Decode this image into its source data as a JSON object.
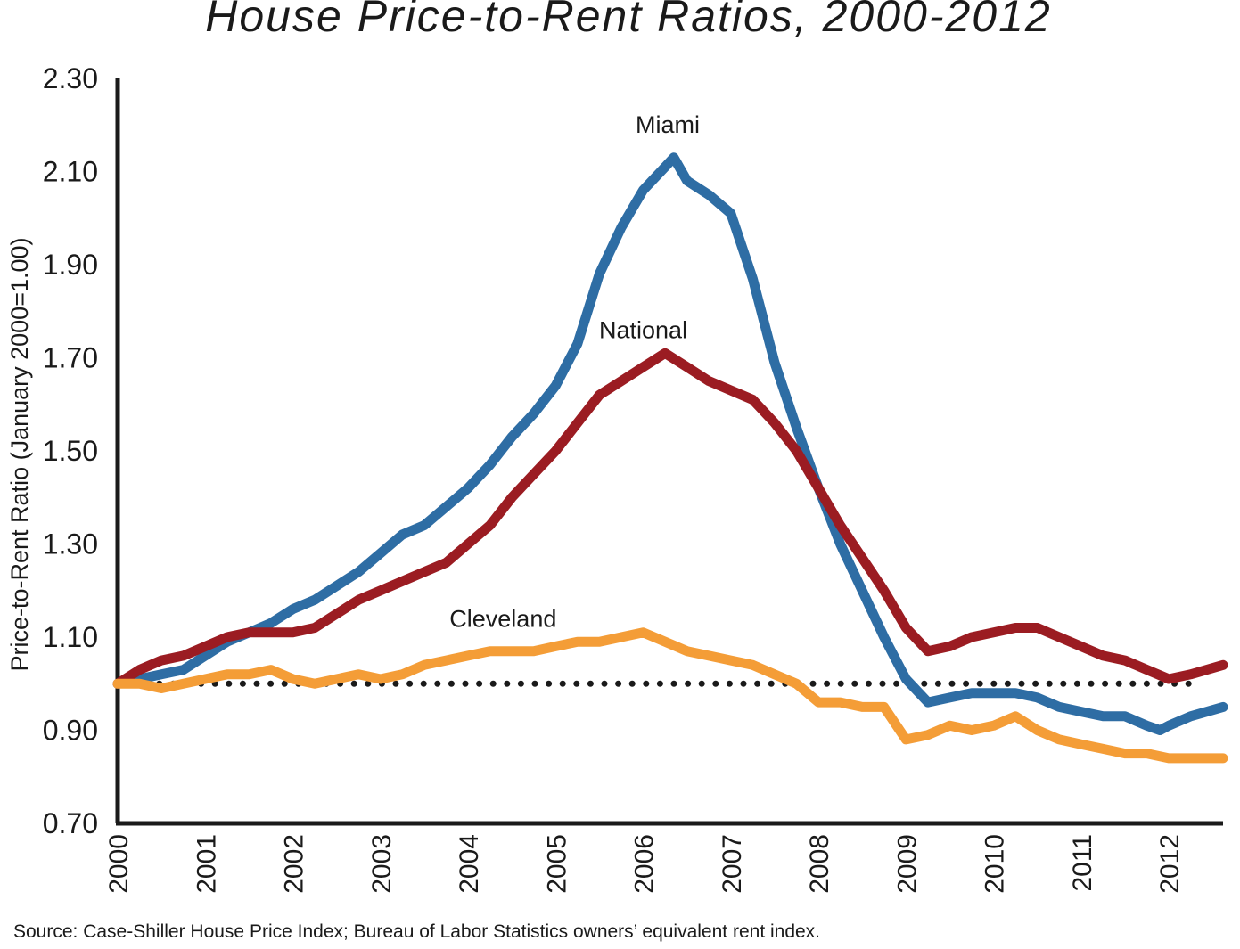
{
  "chart_data": {
    "type": "line",
    "title": "House Price-to-Rent Ratios, 2000-2012",
    "ylabel": "Price-to-Rent Ratio (January 2000=1.00)",
    "xlabel": "",
    "source": "Source: Case-Shiller House Price Index; Bureau of Labor Statistics owners’ equivalent rent index.",
    "xlim": [
      2000,
      2012.62
    ],
    "ylim": [
      0.7,
      2.3
    ],
    "x_ticks": [
      "2000",
      "2001",
      "2002",
      "2003",
      "2004",
      "2005",
      "2006",
      "2007",
      "2008",
      "2009",
      "2010",
      "2011",
      "2012"
    ],
    "y_ticks": [
      "0.70",
      "0.90",
      "1.10",
      "1.30",
      "1.50",
      "1.70",
      "1.90",
      "2.10",
      "2.30"
    ],
    "grid": false,
    "legend": "none (series labeled directly on chart)",
    "reference_line": {
      "y": 1.0,
      "style": "dotted",
      "color": "#1a1a1a"
    },
    "series": [
      {
        "name": "Miami",
        "color": "#2e6da4",
        "points": [
          [
            2000.0,
            1.0
          ],
          [
            2000.25,
            1.01
          ],
          [
            2000.5,
            1.02
          ],
          [
            2000.75,
            1.03
          ],
          [
            2001.0,
            1.06
          ],
          [
            2001.25,
            1.09
          ],
          [
            2001.5,
            1.11
          ],
          [
            2001.75,
            1.13
          ],
          [
            2002.0,
            1.16
          ],
          [
            2002.25,
            1.18
          ],
          [
            2002.5,
            1.21
          ],
          [
            2002.75,
            1.24
          ],
          [
            2003.0,
            1.28
          ],
          [
            2003.25,
            1.32
          ],
          [
            2003.5,
            1.34
          ],
          [
            2003.75,
            1.38
          ],
          [
            2004.0,
            1.42
          ],
          [
            2004.25,
            1.47
          ],
          [
            2004.5,
            1.53
          ],
          [
            2004.75,
            1.58
          ],
          [
            2005.0,
            1.64
          ],
          [
            2005.25,
            1.73
          ],
          [
            2005.5,
            1.88
          ],
          [
            2005.75,
            1.98
          ],
          [
            2006.0,
            2.06
          ],
          [
            2006.25,
            2.11
          ],
          [
            2006.35,
            2.13
          ],
          [
            2006.5,
            2.08
          ],
          [
            2006.75,
            2.05
          ],
          [
            2007.0,
            2.01
          ],
          [
            2007.25,
            1.87
          ],
          [
            2007.5,
            1.69
          ],
          [
            2007.75,
            1.55
          ],
          [
            2008.0,
            1.42
          ],
          [
            2008.25,
            1.3
          ],
          [
            2008.5,
            1.2
          ],
          [
            2008.75,
            1.1
          ],
          [
            2009.0,
            1.01
          ],
          [
            2009.25,
            0.96
          ],
          [
            2009.5,
            0.97
          ],
          [
            2009.75,
            0.98
          ],
          [
            2010.0,
            0.98
          ],
          [
            2010.25,
            0.98
          ],
          [
            2010.5,
            0.97
          ],
          [
            2010.75,
            0.95
          ],
          [
            2011.0,
            0.94
          ],
          [
            2011.25,
            0.93
          ],
          [
            2011.5,
            0.93
          ],
          [
            2011.75,
            0.91
          ],
          [
            2011.9,
            0.9
          ],
          [
            2012.0,
            0.91
          ],
          [
            2012.25,
            0.93
          ],
          [
            2012.62,
            0.95
          ]
        ]
      },
      {
        "name": "National",
        "color": "#9b1c22",
        "points": [
          [
            2000.0,
            1.0
          ],
          [
            2000.25,
            1.03
          ],
          [
            2000.5,
            1.05
          ],
          [
            2000.75,
            1.06
          ],
          [
            2001.0,
            1.08
          ],
          [
            2001.25,
            1.1
          ],
          [
            2001.5,
            1.11
          ],
          [
            2001.75,
            1.11
          ],
          [
            2002.0,
            1.11
          ],
          [
            2002.25,
            1.12
          ],
          [
            2002.5,
            1.15
          ],
          [
            2002.75,
            1.18
          ],
          [
            2003.0,
            1.2
          ],
          [
            2003.25,
            1.22
          ],
          [
            2003.5,
            1.24
          ],
          [
            2003.75,
            1.26
          ],
          [
            2004.0,
            1.3
          ],
          [
            2004.25,
            1.34
          ],
          [
            2004.5,
            1.4
          ],
          [
            2004.75,
            1.45
          ],
          [
            2005.0,
            1.5
          ],
          [
            2005.25,
            1.56
          ],
          [
            2005.5,
            1.62
          ],
          [
            2005.75,
            1.65
          ],
          [
            2006.0,
            1.68
          ],
          [
            2006.25,
            1.71
          ],
          [
            2006.5,
            1.68
          ],
          [
            2006.75,
            1.65
          ],
          [
            2007.0,
            1.63
          ],
          [
            2007.25,
            1.61
          ],
          [
            2007.5,
            1.56
          ],
          [
            2007.75,
            1.5
          ],
          [
            2008.0,
            1.42
          ],
          [
            2008.25,
            1.34
          ],
          [
            2008.5,
            1.27
          ],
          [
            2008.75,
            1.2
          ],
          [
            2009.0,
            1.12
          ],
          [
            2009.25,
            1.07
          ],
          [
            2009.5,
            1.08
          ],
          [
            2009.75,
            1.1
          ],
          [
            2010.0,
            1.11
          ],
          [
            2010.25,
            1.12
          ],
          [
            2010.5,
            1.12
          ],
          [
            2010.75,
            1.1
          ],
          [
            2011.0,
            1.08
          ],
          [
            2011.25,
            1.06
          ],
          [
            2011.5,
            1.05
          ],
          [
            2011.75,
            1.03
          ],
          [
            2012.0,
            1.01
          ],
          [
            2012.25,
            1.02
          ],
          [
            2012.62,
            1.04
          ]
        ]
      },
      {
        "name": "Cleveland",
        "color": "#f49d37",
        "points": [
          [
            2000.0,
            1.0
          ],
          [
            2000.25,
            1.0
          ],
          [
            2000.5,
            0.99
          ],
          [
            2000.75,
            1.0
          ],
          [
            2001.0,
            1.01
          ],
          [
            2001.25,
            1.02
          ],
          [
            2001.5,
            1.02
          ],
          [
            2001.75,
            1.03
          ],
          [
            2002.0,
            1.01
          ],
          [
            2002.25,
            1.0
          ],
          [
            2002.5,
            1.01
          ],
          [
            2002.75,
            1.02
          ],
          [
            2003.0,
            1.01
          ],
          [
            2003.25,
            1.02
          ],
          [
            2003.5,
            1.04
          ],
          [
            2003.75,
            1.05
          ],
          [
            2004.0,
            1.06
          ],
          [
            2004.25,
            1.07
          ],
          [
            2004.5,
            1.07
          ],
          [
            2004.75,
            1.07
          ],
          [
            2005.0,
            1.08
          ],
          [
            2005.25,
            1.09
          ],
          [
            2005.5,
            1.09
          ],
          [
            2005.75,
            1.1
          ],
          [
            2006.0,
            1.11
          ],
          [
            2006.25,
            1.09
          ],
          [
            2006.5,
            1.07
          ],
          [
            2006.75,
            1.06
          ],
          [
            2007.0,
            1.05
          ],
          [
            2007.25,
            1.04
          ],
          [
            2007.5,
            1.02
          ],
          [
            2007.75,
            1.0
          ],
          [
            2008.0,
            0.96
          ],
          [
            2008.25,
            0.96
          ],
          [
            2008.5,
            0.95
          ],
          [
            2008.75,
            0.95
          ],
          [
            2009.0,
            0.88
          ],
          [
            2009.25,
            0.89
          ],
          [
            2009.5,
            0.91
          ],
          [
            2009.75,
            0.9
          ],
          [
            2010.0,
            0.91
          ],
          [
            2010.25,
            0.93
          ],
          [
            2010.5,
            0.9
          ],
          [
            2010.75,
            0.88
          ],
          [
            2011.0,
            0.87
          ],
          [
            2011.25,
            0.86
          ],
          [
            2011.5,
            0.85
          ],
          [
            2011.75,
            0.85
          ],
          [
            2012.0,
            0.84
          ],
          [
            2012.25,
            0.84
          ],
          [
            2012.62,
            0.84
          ]
        ]
      }
    ],
    "annotations": [
      {
        "text": "Miami",
        "x": 2006.28,
        "y": 2.13
      },
      {
        "text": "National",
        "x": 2006.0,
        "y": 1.7
      },
      {
        "text": "Cleveland",
        "x": 2004.4,
        "y": 1.08
      }
    ]
  }
}
